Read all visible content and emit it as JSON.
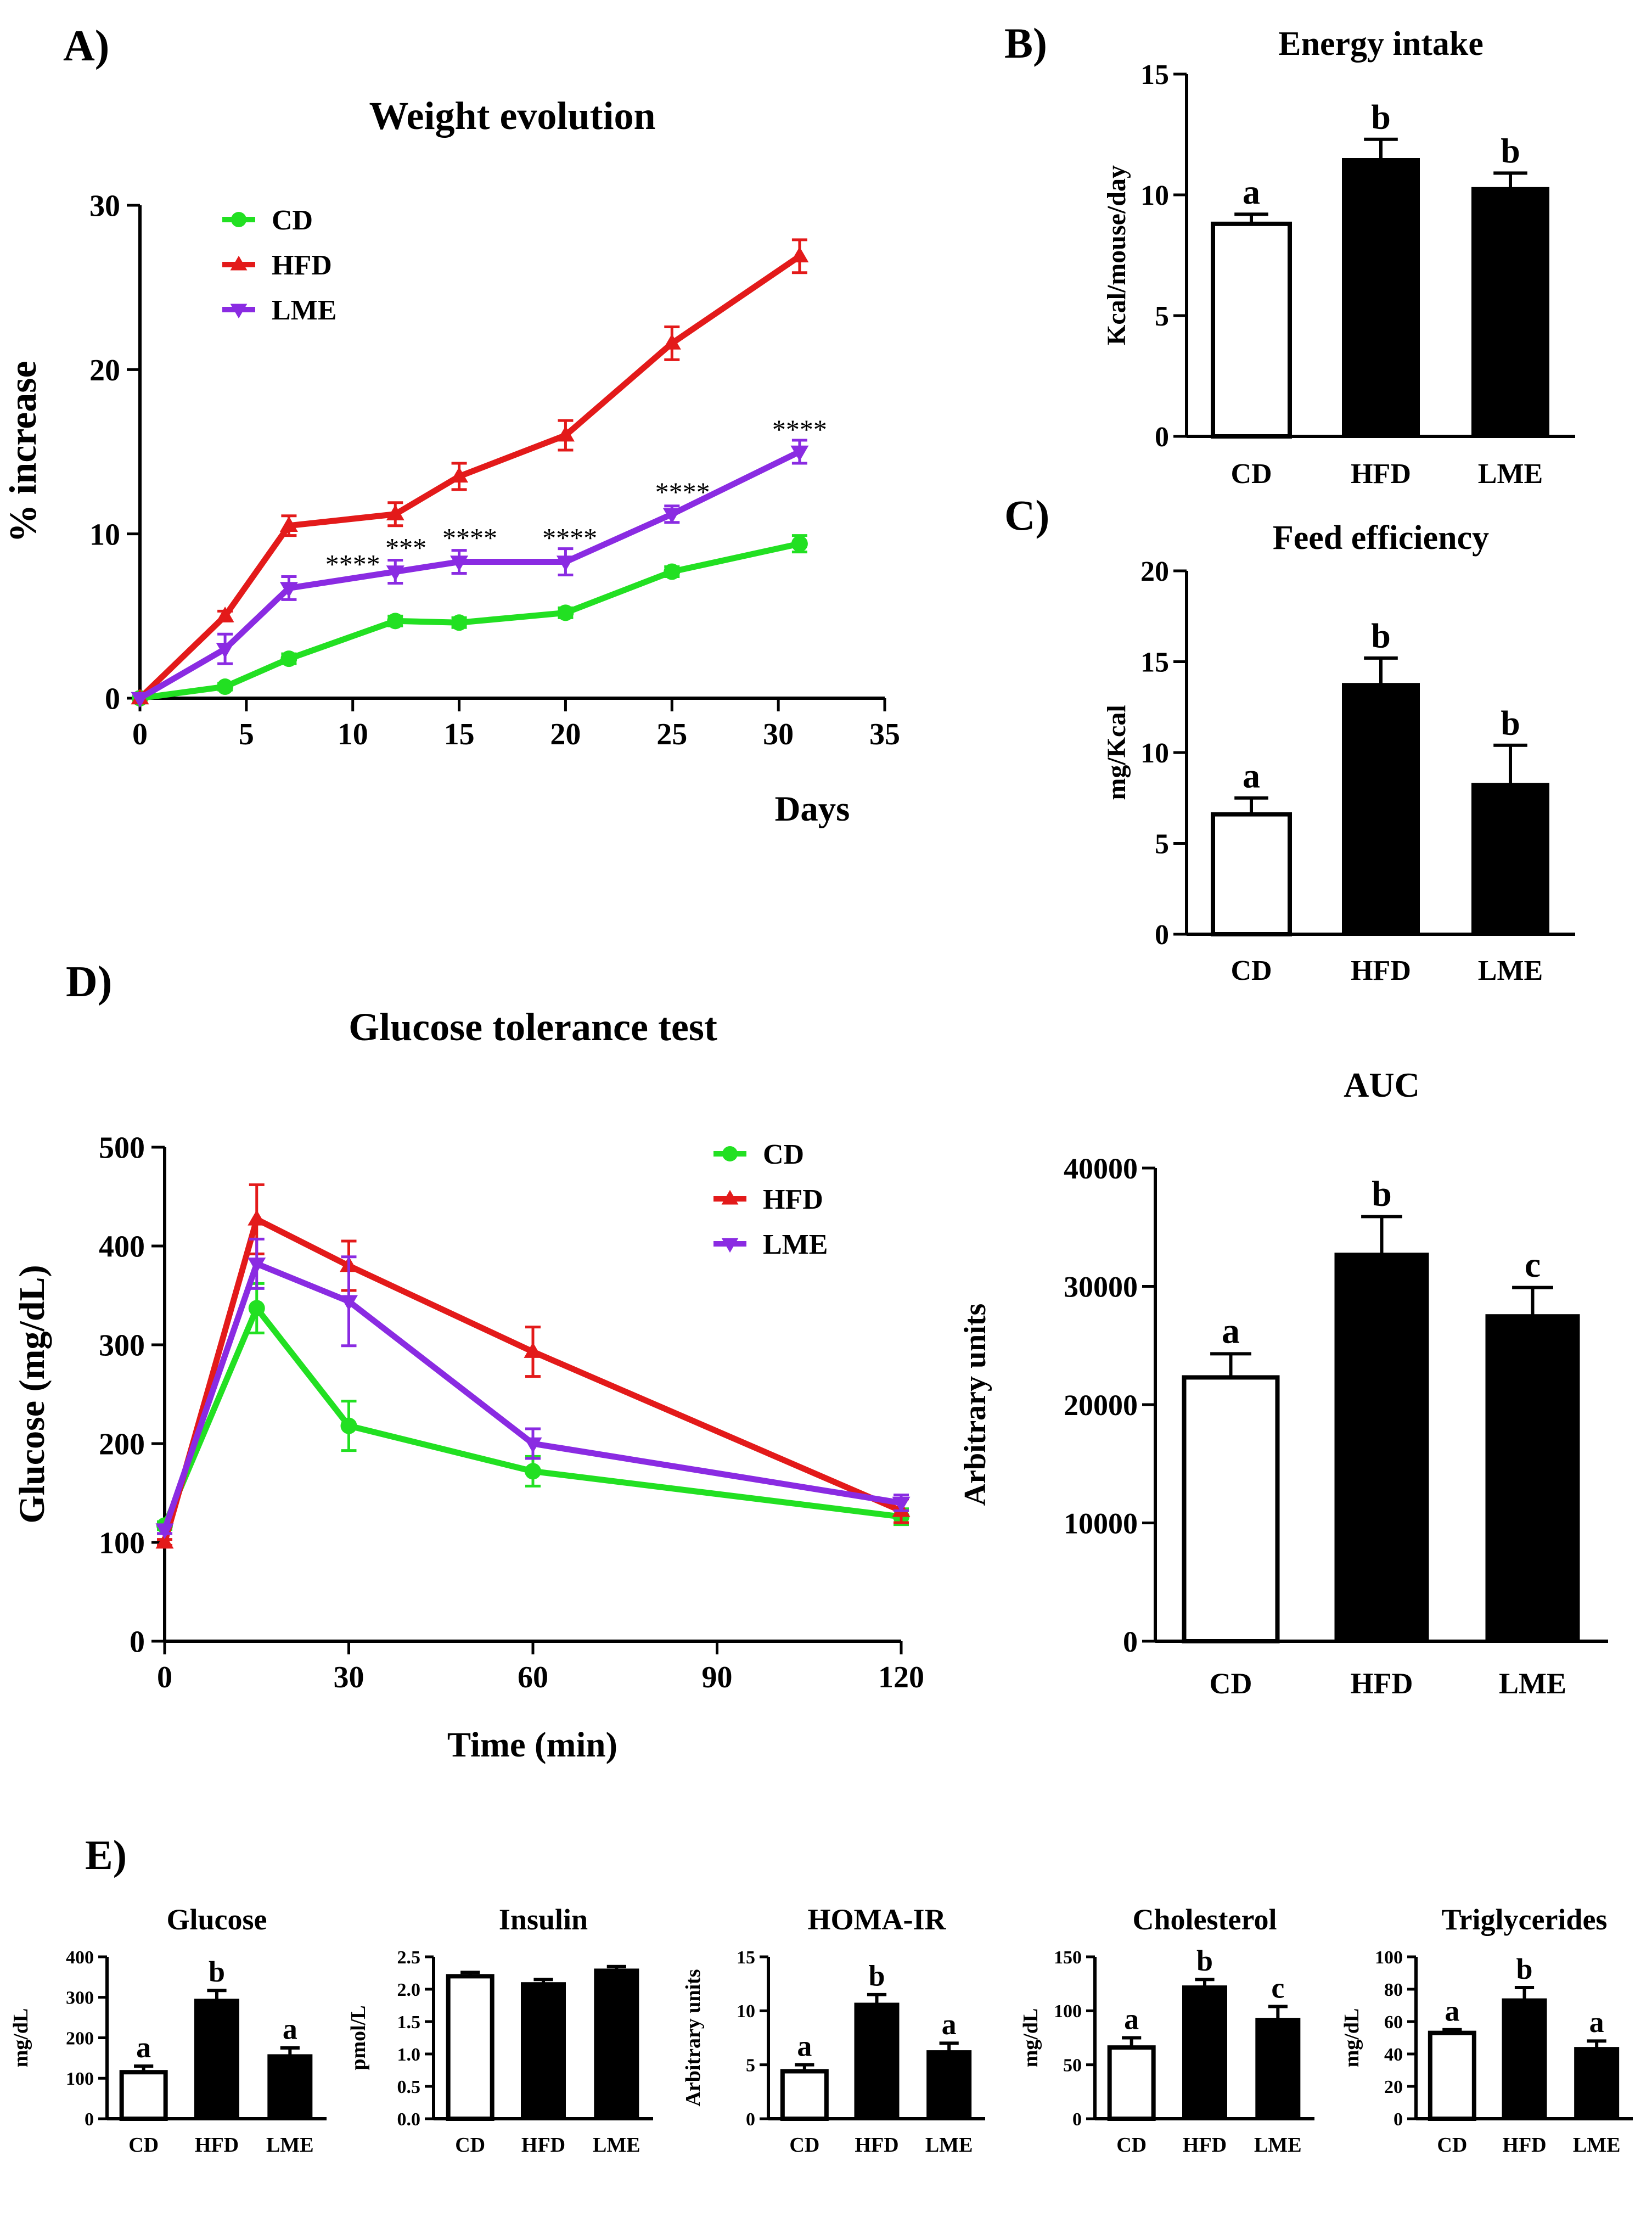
{
  "colors": {
    "CD": "#22e022",
    "HFD": "#e31a1a",
    "LME": "#8a2be2",
    "bar_black": "#000000",
    "bar_white": "#ffffff"
  },
  "chart_data": [
    {
      "id": "A",
      "panel_label": "A)",
      "type": "line",
      "title": "Weight evolution",
      "xlabel": "Days",
      "ylabel": "% increase",
      "xlim": [
        0,
        35
      ],
      "ylim": [
        0,
        30
      ],
      "xticks": [
        0,
        5,
        10,
        15,
        20,
        25,
        30,
        35
      ],
      "yticks": [
        0,
        10,
        20,
        30
      ],
      "legend_position": "top-left",
      "series": [
        {
          "name": "CD",
          "color": "#22e022",
          "marker": "circle",
          "x": [
            0,
            4,
            7,
            12,
            15,
            20,
            25,
            31
          ],
          "y": [
            0,
            0.7,
            2.4,
            4.7,
            4.6,
            5.2,
            7.7,
            9.4
          ],
          "err": [
            0,
            0.2,
            0.3,
            0.3,
            0.3,
            0.3,
            0.3,
            0.5
          ]
        },
        {
          "name": "HFD",
          "color": "#e31a1a",
          "marker": "triangle-up",
          "x": [
            0,
            4,
            7,
            12,
            15,
            20,
            25,
            31
          ],
          "y": [
            0,
            5.0,
            10.5,
            11.2,
            13.5,
            16.0,
            21.6,
            26.9
          ],
          "err": [
            0,
            0.3,
            0.6,
            0.7,
            0.8,
            0.9,
            1.0,
            1.0
          ]
        },
        {
          "name": "LME",
          "color": "#8a2be2",
          "marker": "triangle-down",
          "x": [
            0,
            4,
            7,
            12,
            15,
            20,
            25,
            31
          ],
          "y": [
            0,
            3.0,
            6.7,
            7.7,
            8.3,
            8.3,
            11.2,
            15.0
          ],
          "err": [
            0,
            0.9,
            0.7,
            0.7,
            0.7,
            0.8,
            0.5,
            0.7
          ]
        }
      ],
      "annotations": [
        {
          "x": 10,
          "y": 7.6,
          "text": "****"
        },
        {
          "x": 12.5,
          "y": 8.6,
          "text": "***"
        },
        {
          "x": 15.5,
          "y": 9.2,
          "text": "****"
        },
        {
          "x": 20.2,
          "y": 9.2,
          "text": "****"
        },
        {
          "x": 25.5,
          "y": 12.0,
          "text": "****"
        },
        {
          "x": 31,
          "y": 15.8,
          "text": "****"
        }
      ]
    },
    {
      "id": "B",
      "panel_label": "B)",
      "type": "bar",
      "title": "Energy intake",
      "ylabel": "Kcal/mouse/day",
      "categories": [
        "CD",
        "HFD",
        "LME"
      ],
      "values": [
        8.8,
        11.5,
        10.3
      ],
      "errors": [
        0.4,
        0.8,
        0.6
      ],
      "fills": [
        "white",
        "black",
        "black"
      ],
      "letters": [
        "a",
        "b",
        "b"
      ],
      "ylim": [
        0,
        15
      ],
      "yticks": [
        0,
        5,
        10,
        15
      ]
    },
    {
      "id": "C",
      "panel_label": "C)",
      "type": "bar",
      "title": "Feed efficiency",
      "ylabel": "mg/Kcal",
      "categories": [
        "CD",
        "HFD",
        "LME"
      ],
      "values": [
        6.6,
        13.8,
        8.3
      ],
      "errors": [
        0.9,
        1.4,
        2.1
      ],
      "fills": [
        "white",
        "black",
        "black"
      ],
      "letters": [
        "a",
        "b",
        "b"
      ],
      "ylim": [
        0,
        20
      ],
      "yticks": [
        0,
        5,
        10,
        15,
        20
      ]
    },
    {
      "id": "D",
      "panel_label": "D)",
      "type": "line",
      "title": "Glucose tolerance test",
      "xlabel": "Time (min)",
      "ylabel": "Glucose (mg/dL)",
      "xlim": [
        0,
        120
      ],
      "ylim": [
        0,
        500
      ],
      "xticks": [
        0,
        30,
        60,
        90,
        120
      ],
      "yticks": [
        0,
        100,
        200,
        300,
        400,
        500
      ],
      "legend_position": "top-right",
      "series": [
        {
          "name": "CD",
          "color": "#22e022",
          "marker": "circle",
          "x": [
            0,
            15,
            30,
            60,
            120
          ],
          "y": [
            117,
            337,
            218,
            172,
            126
          ],
          "err": [
            4,
            25,
            25,
            15,
            8
          ]
        },
        {
          "name": "HFD",
          "color": "#e31a1a",
          "marker": "triangle-up",
          "x": [
            0,
            15,
            30,
            60,
            120
          ],
          "y": [
            100,
            427,
            380,
            293,
            132
          ],
          "err": [
            3,
            35,
            25,
            25,
            12
          ]
        },
        {
          "name": "LME",
          "color": "#8a2be2",
          "marker": "triangle-down",
          "x": [
            0,
            15,
            30,
            60,
            120
          ],
          "y": [
            113,
            382,
            344,
            200,
            140
          ],
          "err": [
            4,
            25,
            45,
            15,
            8
          ]
        }
      ]
    },
    {
      "id": "AUC",
      "type": "bar",
      "title": "AUC",
      "ylabel": "Arbitrary units",
      "categories": [
        "CD",
        "HFD",
        "LME"
      ],
      "values": [
        22300,
        32800,
        27600
      ],
      "errors": [
        2000,
        3100,
        2300
      ],
      "fills": [
        "white",
        "black",
        "black"
      ],
      "letters": [
        "a",
        "b",
        "c"
      ],
      "ylim": [
        0,
        40000
      ],
      "yticks": [
        0,
        10000,
        20000,
        30000,
        40000
      ]
    },
    {
      "id": "E1",
      "panel_label": "E)",
      "type": "bar",
      "title": "Glucose",
      "ylabel": "mg/dL",
      "categories": [
        "CD",
        "HFD",
        "LME"
      ],
      "values": [
        115,
        295,
        158
      ],
      "errors": [
        15,
        22,
        17
      ],
      "fills": [
        "white",
        "black",
        "black"
      ],
      "letters": [
        "a",
        "b",
        "a"
      ],
      "ylim": [
        0,
        400
      ],
      "yticks": [
        0,
        100,
        200,
        300,
        400
      ]
    },
    {
      "id": "E2",
      "type": "bar",
      "title": "Insulin",
      "ylabel": "pmol/L",
      "categories": [
        "CD",
        "HFD",
        "LME"
      ],
      "values": [
        2.2,
        2.1,
        2.31
      ],
      "errors": [
        0.06,
        0.05,
        0.04
      ],
      "fills": [
        "white",
        "black",
        "black"
      ],
      "letters": [
        "",
        "",
        ""
      ],
      "ylim": [
        0,
        2.5
      ],
      "yticks": [
        "0.0",
        "0.5",
        "1.0",
        "1.5",
        "2.0",
        "2.5"
      ]
    },
    {
      "id": "E3",
      "type": "bar",
      "title": "HOMA-IR",
      "ylabel": "Arbitrary units",
      "categories": [
        "CD",
        "HFD",
        "LME"
      ],
      "values": [
        4.4,
        10.7,
        6.3
      ],
      "errors": [
        0.6,
        0.8,
        0.7
      ],
      "fills": [
        "white",
        "black",
        "black"
      ],
      "letters": [
        "a",
        "b",
        "a"
      ],
      "ylim": [
        0,
        15
      ],
      "yticks": [
        0,
        5,
        10,
        15
      ]
    },
    {
      "id": "E4",
      "type": "bar",
      "title": "Cholesterol",
      "ylabel": "mg/dL",
      "categories": [
        "CD",
        "HFD",
        "LME"
      ],
      "values": [
        66,
        123,
        93
      ],
      "errors": [
        9,
        6,
        11
      ],
      "fills": [
        "white",
        "black",
        "black"
      ],
      "letters": [
        "a",
        "b",
        "c"
      ],
      "ylim": [
        0,
        150
      ],
      "yticks": [
        0,
        50,
        100,
        150
      ]
    },
    {
      "id": "E5",
      "type": "bar",
      "title": "Triglycerides",
      "ylabel": "mg/dL",
      "categories": [
        "CD",
        "HFD",
        "LME"
      ],
      "values": [
        53,
        74,
        44
      ],
      "errors": [
        2,
        7,
        4
      ],
      "fills": [
        "white",
        "black",
        "black"
      ],
      "letters": [
        "a",
        "b",
        "a"
      ],
      "ylim": [
        0,
        100
      ],
      "yticks": [
        0,
        20,
        40,
        60,
        80,
        100
      ]
    }
  ]
}
